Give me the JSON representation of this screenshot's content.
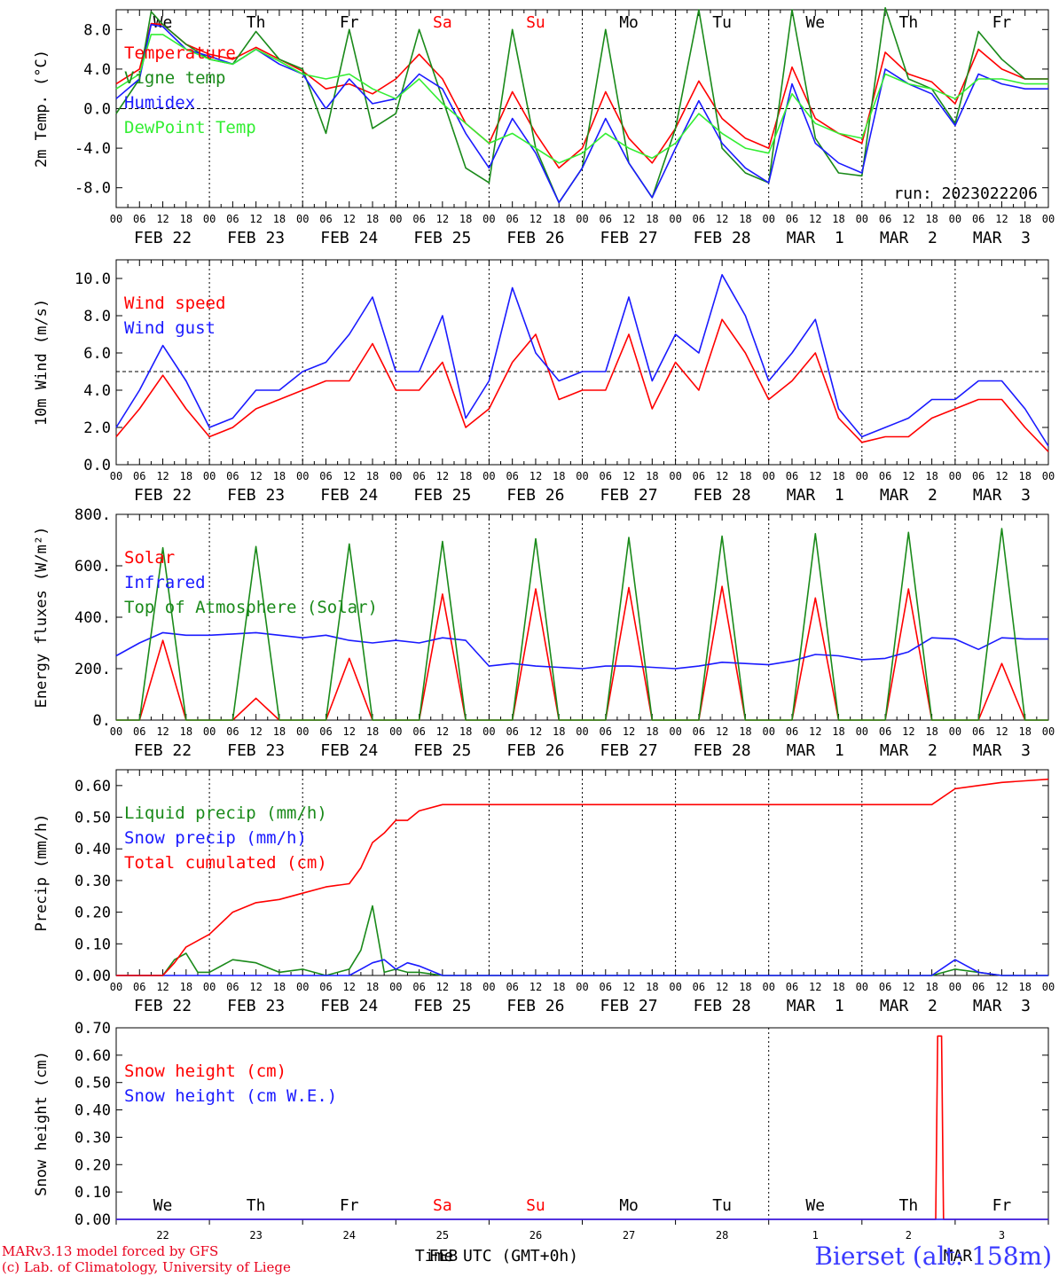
{
  "colors": {
    "red": "#ff0000",
    "green": "#1a8a1a",
    "blue": "#1a1aff",
    "lightgreen": "#33ee33",
    "axis": "#000000"
  },
  "days": {
    "weekday_labels": [
      "We",
      "Th",
      "Fr",
      "Sa",
      "Su",
      "Mo",
      "Tu",
      "We",
      "Th",
      "Fr"
    ],
    "weekday_colors": [
      "black",
      "black",
      "black",
      "red",
      "red",
      "black",
      "black",
      "black",
      "black",
      "black"
    ],
    "date_labels": [
      "FEB 22",
      "FEB 23",
      "FEB 24",
      "FEB 25",
      "FEB 26",
      "FEB 27",
      "FEB 28",
      "MAR  1",
      "MAR  2",
      "MAR  3"
    ],
    "hour_ticks": [
      "00",
      "06",
      "12",
      "18"
    ],
    "last_hour_tick": "00",
    "bottom_day_numbers": [
      "22",
      "23",
      "24",
      "25",
      "26",
      "27",
      "28",
      "1",
      "2",
      "3"
    ]
  },
  "footer": {
    "model_line": "MARv3.13 model forced by GFS",
    "lab_line": "(c) Lab. of Climatology, University of Liege",
    "time_label": "Time UTC (GMT+0h)",
    "feb_label": "FEB",
    "mar_label": "MAR",
    "station": "Bierset (alt: 158m)"
  },
  "chart_data": [
    {
      "type": "line",
      "id": "temp",
      "ylabel": "2m Temp. (°C)",
      "ylim": [
        -10,
        10
      ],
      "yticks": [
        8,
        4,
        0,
        -4,
        -8
      ],
      "ytick_labels": [
        "8.0",
        "4.0",
        "0.0",
        "-4.0",
        "-8.0"
      ],
      "ref_line": 0,
      "run_label": "run: 2023022206",
      "x_hours": [
        0,
        6,
        9,
        12,
        18,
        24,
        30,
        36,
        42,
        48,
        54,
        60,
        66,
        72,
        78,
        84,
        90,
        96,
        102,
        108,
        114,
        120,
        126,
        132,
        138,
        144,
        150,
        156,
        162,
        168,
        174,
        180,
        186,
        192,
        198,
        204,
        210,
        216,
        222,
        228,
        234,
        240
      ],
      "series": [
        {
          "name": "Temperature",
          "color": "red",
          "values": [
            2.5,
            4.0,
            8.6,
            8.5,
            6.5,
            5.5,
            5.0,
            6.2,
            5.0,
            3.8,
            2.0,
            2.5,
            1.5,
            3.0,
            5.5,
            3.0,
            -1.5,
            -3.5,
            1.7,
            -2.5,
            -6.0,
            -4.0,
            1.7,
            -3.0,
            -5.5,
            -2.0,
            2.8,
            -1.0,
            -3.0,
            -4.0,
            4.2,
            -1.0,
            -2.5,
            -3.5,
            5.7,
            3.5,
            2.7,
            0.5,
            6.0,
            4.0,
            3.0,
            3.0
          ]
        },
        {
          "name": "Vigne temp",
          "color": "green",
          "values": [
            -0.5,
            3.0,
            9.8,
            8.5,
            6.5,
            5.0,
            4.5,
            7.8,
            5.0,
            4.0,
            -2.5,
            8.0,
            -2.0,
            -0.5,
            8.0,
            1.0,
            -6.0,
            -7.5,
            8.0,
            -4.0,
            -9.5,
            -6.0,
            8.0,
            -5.5,
            -9.0,
            -2.0,
            10.0,
            -4.0,
            -6.5,
            -7.5,
            10.0,
            -3.0,
            -6.5,
            -6.8,
            10.2,
            3.0,
            2.0,
            -1.5,
            7.8,
            5.0,
            3.0,
            3.0
          ]
        },
        {
          "name": "Humidex",
          "color": "blue",
          "values": [
            1.0,
            3.0,
            8.5,
            8.3,
            6.0,
            5.3,
            4.5,
            6.0,
            4.5,
            3.5,
            0.0,
            3.0,
            0.5,
            1.0,
            3.5,
            2.0,
            -2.5,
            -6.0,
            -1.0,
            -4.5,
            -9.5,
            -6.0,
            -1.0,
            -5.5,
            -9.0,
            -4.0,
            0.8,
            -3.5,
            -6.0,
            -7.5,
            2.5,
            -3.5,
            -5.5,
            -6.5,
            4.0,
            2.5,
            1.5,
            -1.7,
            3.5,
            2.5,
            2.0,
            2.0
          ]
        },
        {
          "name": "DewPoint Temp",
          "color": "lightgreen",
          "values": [
            2.0,
            3.5,
            7.5,
            7.5,
            6.0,
            5.0,
            4.5,
            6.0,
            4.8,
            3.5,
            3.0,
            3.5,
            2.0,
            1.0,
            3.0,
            0.5,
            -1.5,
            -3.5,
            -2.5,
            -4.0,
            -5.5,
            -4.5,
            -2.5,
            -4.0,
            -5.0,
            -3.5,
            -0.5,
            -2.5,
            -4.0,
            -4.5,
            1.5,
            -1.5,
            -2.5,
            -3.0,
            3.5,
            2.5,
            2.0,
            1.0,
            3.0,
            3.0,
            2.5,
            2.5
          ]
        }
      ]
    },
    {
      "type": "line",
      "id": "wind",
      "ylabel": "10m Wind (m/s)",
      "ylim": [
        0,
        11
      ],
      "yticks": [
        10,
        8,
        6,
        4,
        2,
        0
      ],
      "ytick_labels": [
        "10.0",
        "8.0",
        "6.0",
        "4.0",
        "2.0",
        "0.0"
      ],
      "ref_line": 5,
      "x_hours": [
        0,
        6,
        12,
        18,
        24,
        30,
        36,
        42,
        48,
        54,
        60,
        66,
        72,
        78,
        84,
        90,
        96,
        102,
        108,
        114,
        120,
        126,
        132,
        138,
        144,
        150,
        156,
        162,
        168,
        174,
        180,
        186,
        192,
        198,
        204,
        210,
        216,
        222,
        228,
        234,
        240
      ],
      "series": [
        {
          "name": "Wind speed",
          "color": "red",
          "values": [
            1.5,
            3.0,
            4.8,
            3.0,
            1.5,
            2.0,
            3.0,
            3.5,
            4.0,
            4.5,
            4.5,
            6.5,
            4.0,
            4.0,
            5.5,
            2.0,
            3.0,
            5.5,
            7.0,
            3.5,
            4.0,
            4.0,
            7.0,
            3.0,
            5.5,
            4.0,
            7.8,
            6.0,
            3.5,
            4.5,
            6.0,
            2.5,
            1.2,
            1.5,
            1.5,
            2.5,
            3.0,
            3.5,
            3.5,
            2.0,
            0.7
          ]
        },
        {
          "name": "Wind gust",
          "color": "blue",
          "values": [
            2.0,
            4.0,
            6.4,
            4.5,
            2.0,
            2.5,
            4.0,
            4.0,
            5.0,
            5.5,
            7.0,
            9.0,
            5.0,
            5.0,
            8.0,
            2.5,
            4.5,
            9.5,
            6.0,
            4.5,
            5.0,
            5.0,
            9.0,
            4.5,
            7.0,
            6.0,
            10.2,
            8.0,
            4.5,
            6.0,
            7.8,
            3.0,
            1.5,
            2.0,
            2.5,
            3.5,
            3.5,
            4.5,
            4.5,
            3.0,
            1.0
          ]
        }
      ]
    },
    {
      "type": "line",
      "id": "energy",
      "ylabel": "Energy fluxes (W/m²)",
      "ylim": [
        0,
        800
      ],
      "yticks": [
        800,
        600,
        400,
        200,
        0
      ],
      "ytick_labels": [
        "800.",
        "600.",
        "400.",
        "200.",
        "0."
      ],
      "x_hours": [
        0,
        6,
        12,
        18,
        24,
        30,
        36,
        42,
        48,
        54,
        60,
        66,
        72,
        78,
        84,
        90,
        96,
        102,
        108,
        114,
        120,
        126,
        132,
        138,
        144,
        150,
        156,
        162,
        168,
        174,
        180,
        186,
        192,
        198,
        204,
        210,
        216,
        222,
        228,
        234,
        240
      ],
      "series": [
        {
          "name": "Solar",
          "color": "red",
          "values": [
            0,
            0,
            310,
            0,
            0,
            0,
            85,
            0,
            0,
            0,
            240,
            0,
            0,
            0,
            490,
            0,
            0,
            0,
            510,
            0,
            0,
            0,
            515,
            0,
            0,
            0,
            520,
            0,
            0,
            0,
            475,
            0,
            0,
            0,
            510,
            0,
            0,
            0,
            220,
            0,
            0
          ]
        },
        {
          "name": "Infrared",
          "color": "blue",
          "values": [
            250,
            300,
            340,
            330,
            330,
            335,
            340,
            330,
            320,
            330,
            310,
            300,
            310,
            300,
            320,
            310,
            210,
            220,
            210,
            205,
            200,
            210,
            210,
            205,
            200,
            210,
            225,
            220,
            215,
            230,
            255,
            250,
            235,
            240,
            265,
            320,
            315,
            275,
            320,
            315,
            315
          ]
        },
        {
          "name": "Top of Atmosphere (Solar)",
          "color": "green",
          "values": [
            0,
            0,
            670,
            0,
            0,
            0,
            675,
            0,
            0,
            0,
            685,
            0,
            0,
            0,
            695,
            0,
            0,
            0,
            705,
            0,
            0,
            0,
            710,
            0,
            0,
            0,
            715,
            0,
            0,
            0,
            725,
            0,
            0,
            0,
            730,
            0,
            0,
            0,
            745,
            0,
            0
          ]
        }
      ]
    },
    {
      "type": "line",
      "id": "precip",
      "ylabel": "Precip (mm/h)",
      "ylim": [
        0,
        0.65
      ],
      "yticks": [
        0.6,
        0.5,
        0.4,
        0.3,
        0.2,
        0.1,
        0.0
      ],
      "ytick_labels": [
        "0.60",
        "0.50",
        "0.40",
        "0.30",
        "0.20",
        "0.10",
        "0.00"
      ],
      "x_hours": [
        0,
        6,
        12,
        15,
        18,
        21,
        24,
        30,
        36,
        42,
        48,
        54,
        60,
        63,
        66,
        69,
        72,
        75,
        78,
        84,
        90,
        96,
        120,
        144,
        168,
        192,
        210,
        216,
        222,
        228,
        234,
        240
      ],
      "series": [
        {
          "name": "Liquid precip (mm/h)",
          "color": "green",
          "values": [
            0,
            0,
            0,
            0.05,
            0.07,
            0.01,
            0.01,
            0.05,
            0.04,
            0.01,
            0.02,
            0,
            0.02,
            0.08,
            0.22,
            0.01,
            0.02,
            0.01,
            0.01,
            0,
            0,
            0,
            0,
            0,
            0,
            0,
            0,
            0.02,
            0.01,
            0,
            0,
            0
          ]
        },
        {
          "name": "Snow precip (mm/h)",
          "color": "blue",
          "values": [
            0,
            0,
            0,
            0,
            0,
            0,
            0,
            0,
            0,
            0,
            0,
            0,
            0,
            0.02,
            0.04,
            0.05,
            0.02,
            0.04,
            0.03,
            0,
            0,
            0,
            0,
            0,
            0,
            0,
            0,
            0.05,
            0.01,
            0,
            0,
            0
          ]
        },
        {
          "name": "Total cumulated (cm)",
          "color": "red",
          "values": [
            0,
            0,
            0,
            0.04,
            0.09,
            0.11,
            0.13,
            0.2,
            0.23,
            0.24,
            0.26,
            0.28,
            0.29,
            0.34,
            0.42,
            0.45,
            0.49,
            0.49,
            0.52,
            0.54,
            0.54,
            0.54,
            0.54,
            0.54,
            0.54,
            0.54,
            0.54,
            0.59,
            0.6,
            0.61,
            0.615,
            0.62
          ]
        }
      ]
    },
    {
      "type": "line",
      "id": "snow",
      "ylabel": "Snow height (cm)",
      "ylim": [
        0,
        0.7
      ],
      "yticks": [
        0.7,
        0.6,
        0.5,
        0.4,
        0.3,
        0.2,
        0.1,
        0.0
      ],
      "ytick_labels": [
        "0.70",
        "0.60",
        "0.50",
        "0.40",
        "0.30",
        "0.20",
        "0.10",
        "0.00"
      ],
      "x_hours": [
        0,
        211,
        211.5,
        212.5,
        213,
        240
      ],
      "series": [
        {
          "name": "Snow height (cm)",
          "color": "red",
          "values": [
            0,
            0,
            0.67,
            0.67,
            0,
            0
          ]
        },
        {
          "name": "Snow height (cm W.E.)",
          "color": "blue",
          "values": [
            0,
            0,
            0,
            0,
            0,
            0
          ]
        }
      ]
    }
  ]
}
